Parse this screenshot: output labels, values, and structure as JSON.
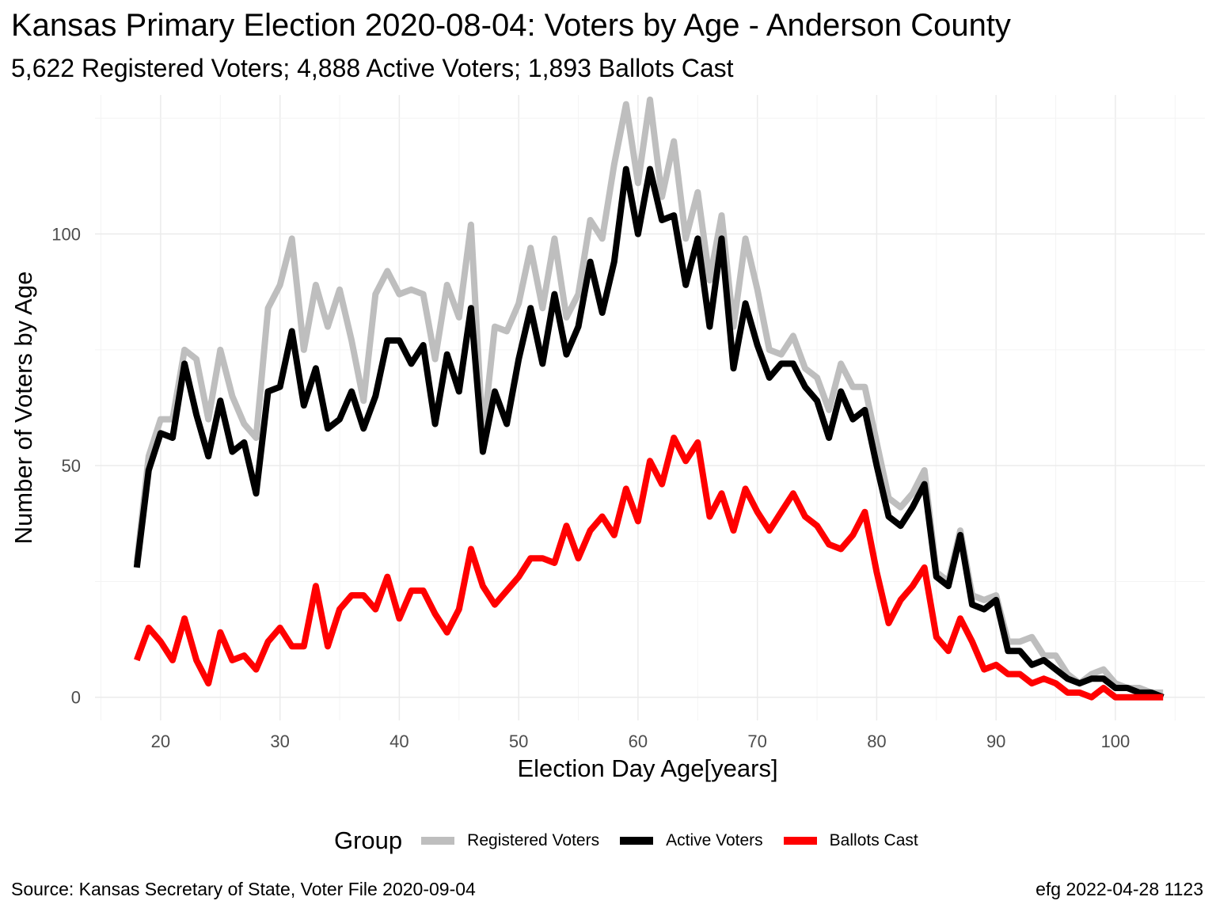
{
  "chart_data": {
    "type": "line",
    "title": "Kansas Primary Election 2020-08-04:  Voters by Age - Anderson County",
    "subtitle": "5,622 Registered Voters; 4,888 Active Voters; 1,893 Ballots Cast",
    "xlabel": "Election Day Age[years]",
    "ylabel": "Number of Voters by Age",
    "xlim": [
      14.5,
      107.5
    ],
    "ylim": [
      -5,
      130
    ],
    "x_ticks": [
      20,
      30,
      40,
      50,
      60,
      70,
      80,
      90,
      100
    ],
    "y_ticks": [
      0,
      50,
      100
    ],
    "grid": true,
    "legend_position": "bottom",
    "legend_title": "Group",
    "x": [
      18,
      19,
      20,
      21,
      22,
      23,
      24,
      25,
      26,
      27,
      28,
      29,
      30,
      31,
      32,
      33,
      34,
      35,
      36,
      37,
      38,
      39,
      40,
      41,
      42,
      43,
      44,
      45,
      46,
      47,
      48,
      49,
      50,
      51,
      52,
      53,
      54,
      55,
      56,
      57,
      58,
      59,
      60,
      61,
      62,
      63,
      64,
      65,
      66,
      67,
      68,
      69,
      70,
      71,
      72,
      73,
      74,
      75,
      76,
      77,
      78,
      79,
      80,
      81,
      82,
      83,
      84,
      85,
      86,
      87,
      88,
      89,
      90,
      91,
      92,
      93,
      94,
      95,
      96,
      97,
      98,
      99,
      100,
      101,
      102,
      103,
      104
    ],
    "series": [
      {
        "name": "Registered Voters",
        "color": "#bebebe",
        "values": [
          29,
          52,
          60,
          60,
          75,
          73,
          60,
          75,
          65,
          59,
          56,
          84,
          89,
          99,
          75,
          89,
          80,
          88,
          77,
          64,
          87,
          92,
          87,
          88,
          87,
          73,
          89,
          82,
          102,
          56,
          80,
          79,
          85,
          97,
          84,
          99,
          82,
          87,
          103,
          99,
          115,
          128,
          111,
          129,
          108,
          120,
          99,
          109,
          90,
          104,
          80,
          99,
          88,
          75,
          74,
          78,
          71,
          69,
          62,
          72,
          67,
          67,
          55,
          43,
          41,
          44,
          49,
          27,
          25,
          36,
          22,
          21,
          22,
          12,
          12,
          13,
          9,
          9,
          5,
          3,
          5,
          6,
          3,
          2,
          2,
          1,
          1
        ]
      },
      {
        "name": "Active Voters",
        "color": "#000000",
        "values": [
          28,
          49,
          57,
          56,
          72,
          61,
          52,
          64,
          53,
          55,
          44,
          66,
          67,
          79,
          63,
          71,
          58,
          60,
          66,
          58,
          65,
          77,
          77,
          72,
          76,
          59,
          74,
          66,
          84,
          53,
          66,
          59,
          73,
          84,
          72,
          87,
          74,
          80,
          94,
          83,
          94,
          114,
          100,
          114,
          103,
          104,
          89,
          99,
          80,
          99,
          71,
          85,
          76,
          69,
          72,
          72,
          67,
          64,
          56,
          66,
          60,
          62,
          50,
          39,
          37,
          41,
          46,
          26,
          24,
          35,
          20,
          19,
          21,
          10,
          10,
          7,
          8,
          6,
          4,
          3,
          4,
          4,
          2,
          2,
          1,
          1,
          0
        ]
      },
      {
        "name": "Ballots Cast",
        "color": "#ff0000",
        "values": [
          8,
          15,
          12,
          8,
          17,
          8,
          3,
          14,
          8,
          9,
          6,
          12,
          15,
          11,
          11,
          24,
          11,
          19,
          22,
          22,
          19,
          26,
          17,
          23,
          23,
          18,
          14,
          19,
          32,
          24,
          20,
          23,
          26,
          30,
          30,
          29,
          37,
          30,
          36,
          39,
          35,
          45,
          38,
          51,
          46,
          56,
          51,
          55,
          39,
          44,
          36,
          45,
          40,
          36,
          40,
          44,
          39,
          37,
          33,
          32,
          35,
          40,
          27,
          16,
          21,
          24,
          28,
          13,
          10,
          17,
          12,
          6,
          7,
          5,
          5,
          3,
          4,
          3,
          1,
          1,
          0,
          2,
          0,
          0,
          0,
          0,
          0
        ]
      }
    ]
  },
  "footer": {
    "source": "Source:  Kansas Secretary of State, Voter File  2020-09-04",
    "credit": "efg 2022-04-28 1123"
  }
}
